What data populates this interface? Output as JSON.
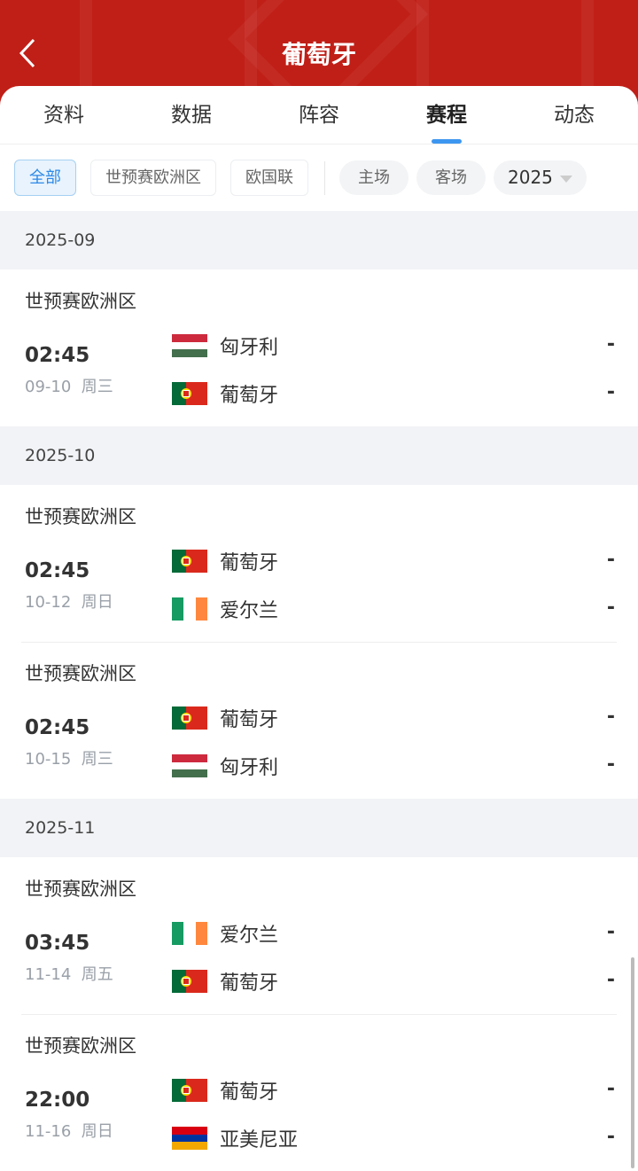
{
  "header": {
    "title": "葡萄牙",
    "back_icon": "chevron-left-icon",
    "color": "#c01f17"
  },
  "tabs": [
    {
      "label": "资料"
    },
    {
      "label": "数据"
    },
    {
      "label": "阵容"
    },
    {
      "label": "赛程",
      "active": true
    },
    {
      "label": "动态"
    }
  ],
  "filters": {
    "competitions": [
      {
        "label": "全部",
        "active": true
      },
      {
        "label": "世预赛欧洲区"
      },
      {
        "label": "欧国联"
      }
    ],
    "venue": [
      {
        "label": "主场"
      },
      {
        "label": "客场"
      }
    ],
    "year": "2025"
  },
  "months": [
    {
      "label": "2025-09",
      "matches": [
        {
          "competition": "世预赛欧洲区",
          "time": "02:45",
          "date": "09-10",
          "weekday": "周三",
          "home": {
            "name": "匈牙利",
            "flag": "hungary"
          },
          "away": {
            "name": "葡萄牙",
            "flag": "portugal"
          },
          "home_score": "-",
          "away_score": "-"
        }
      ]
    },
    {
      "label": "2025-10",
      "matches": [
        {
          "competition": "世预赛欧洲区",
          "time": "02:45",
          "date": "10-12",
          "weekday": "周日",
          "home": {
            "name": "葡萄牙",
            "flag": "portugal"
          },
          "away": {
            "name": "爱尔兰",
            "flag": "ireland"
          },
          "home_score": "-",
          "away_score": "-"
        },
        {
          "competition": "世预赛欧洲区",
          "time": "02:45",
          "date": "10-15",
          "weekday": "周三",
          "home": {
            "name": "葡萄牙",
            "flag": "portugal"
          },
          "away": {
            "name": "匈牙利",
            "flag": "hungary"
          },
          "home_score": "-",
          "away_score": "-"
        }
      ]
    },
    {
      "label": "2025-11",
      "matches": [
        {
          "competition": "世预赛欧洲区",
          "time": "03:45",
          "date": "11-14",
          "weekday": "周五",
          "home": {
            "name": "爱尔兰",
            "flag": "ireland"
          },
          "away": {
            "name": "葡萄牙",
            "flag": "portugal"
          },
          "home_score": "-",
          "away_score": "-"
        },
        {
          "competition": "世预赛欧洲区",
          "time": "22:00",
          "date": "11-16",
          "weekday": "周日",
          "home": {
            "name": "葡萄牙",
            "flag": "portugal"
          },
          "away": {
            "name": "亚美尼亚",
            "flag": "armenia"
          },
          "home_score": "-",
          "away_score": "-"
        }
      ]
    }
  ],
  "accent": "#3d96f0"
}
